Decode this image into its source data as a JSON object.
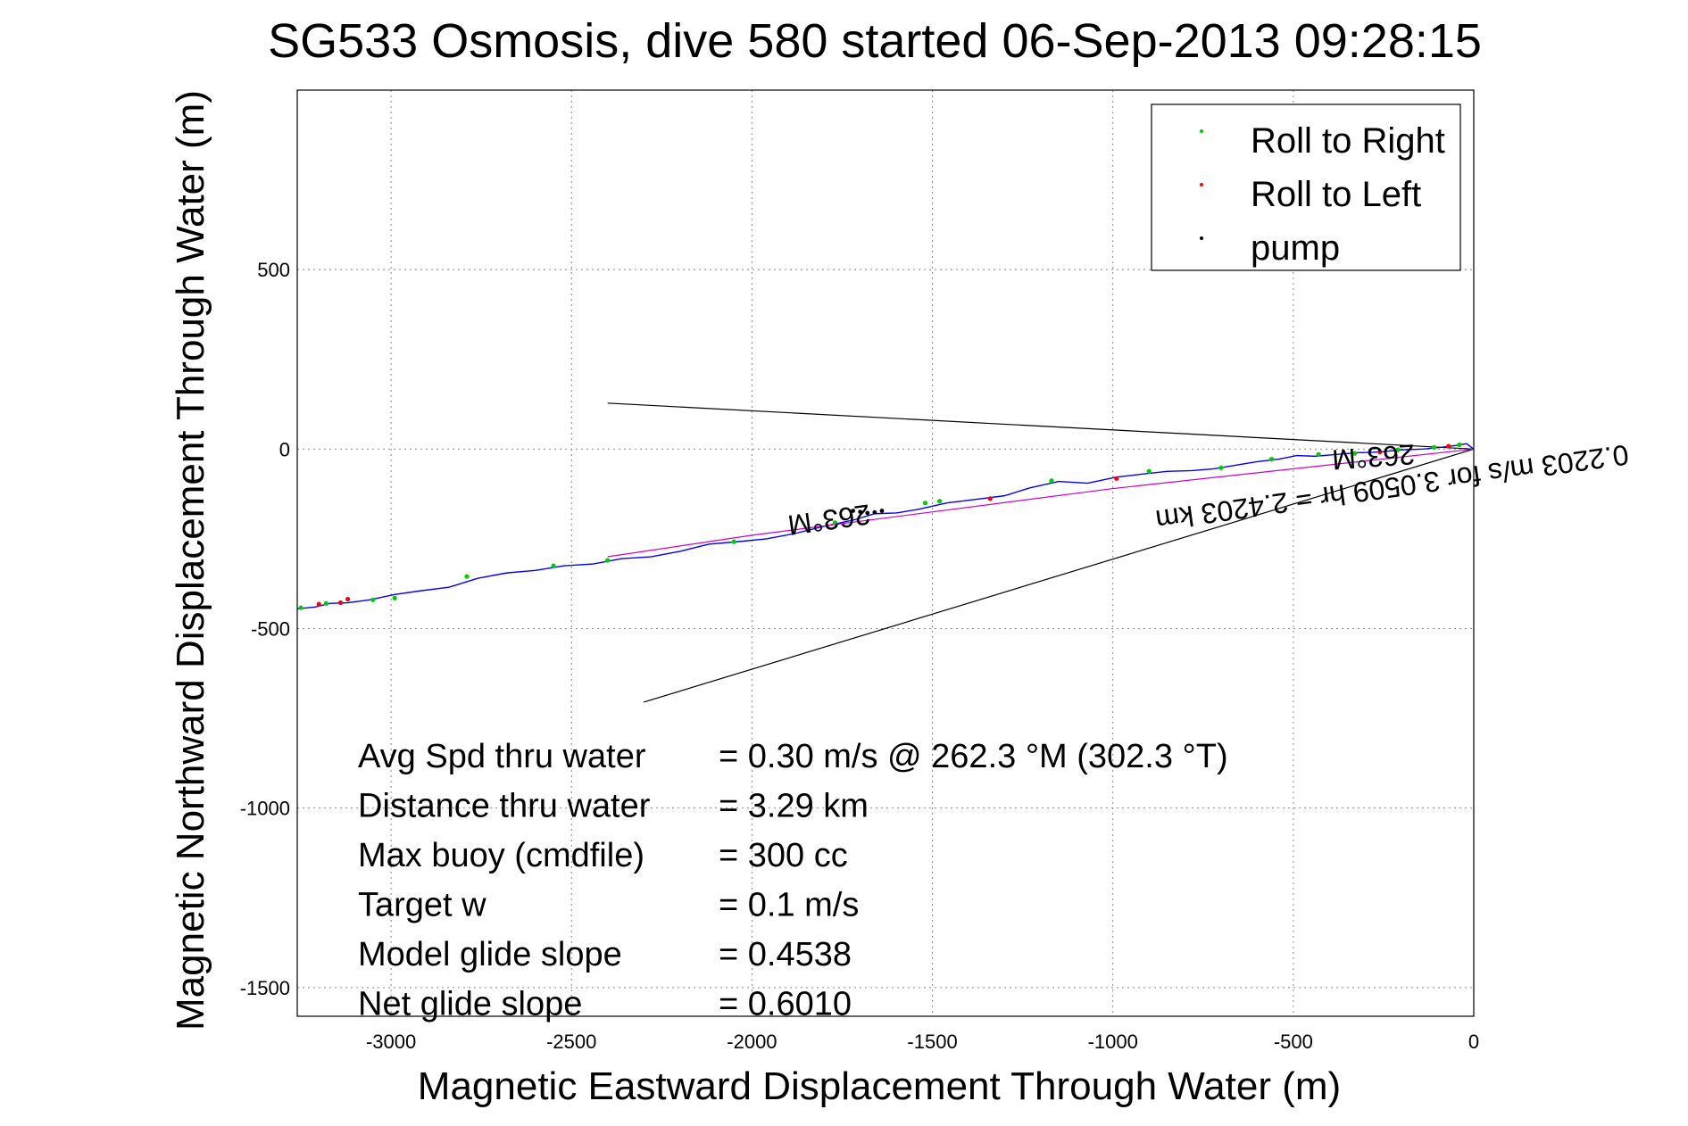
{
  "chart_data": {
    "type": "line",
    "title": "SG533 Osmosis, dive 580 started 06-Sep-2013 09:28:15",
    "xlabel": "Magnetic Eastward Displacement Through Water (m)",
    "ylabel": "Magnetic Northward Displacement Through Water (m)",
    "xlim": [
      -3260,
      0
    ],
    "ylim": [
      -1580,
      1000
    ],
    "xticks": [
      -3000,
      -2500,
      -2000,
      -1500,
      -1000,
      -500,
      0
    ],
    "yticks": [
      500,
      0,
      -500,
      -1000,
      -1500
    ],
    "xtick_labels": [
      "-3000",
      "-2500",
      "-2000",
      "-1500",
      "-1000",
      "-500",
      "0"
    ],
    "ytick_labels": [
      "500",
      "0",
      "-500",
      "-1000",
      "-1500"
    ],
    "grid": true,
    "legend": {
      "placement": "top-right",
      "entries": [
        {
          "label": "Roll to Right",
          "color": "#00cc00"
        },
        {
          "label": "Roll to Left",
          "color": "#ff0000"
        },
        {
          "label": "pump",
          "color": "#000000"
        }
      ]
    },
    "series": [
      {
        "color": "#0000ff",
        "x": [
          0,
          -20,
          -50,
          -90,
          -140,
          -200,
          -260,
          -320,
          -380,
          -440,
          -490,
          -540,
          -600,
          -660,
          -720,
          -780,
          -850,
          -920,
          -990,
          -1070,
          -1150,
          -1230,
          -1300,
          -1380,
          -1460,
          -1540,
          -1600,
          -1660,
          -1720,
          -1800,
          -1880,
          -1960,
          -2040,
          -2120,
          -2200,
          -2280,
          -2360,
          -2440,
          -2520,
          -2600,
          -2680,
          -2760,
          -2840,
          -2920,
          -2990,
          -3060,
          -3120,
          -3170,
          -3210,
          -3260
        ],
        "y": [
          0,
          15,
          10,
          5,
          0,
          -2,
          -8,
          -10,
          -15,
          -20,
          -18,
          -28,
          -35,
          -45,
          -55,
          -60,
          -62,
          -70,
          -78,
          -95,
          -90,
          -108,
          -130,
          -140,
          -150,
          -168,
          -178,
          -180,
          -198,
          -215,
          -235,
          -250,
          -258,
          -265,
          -285,
          -300,
          -305,
          -320,
          -325,
          -338,
          -345,
          -360,
          -385,
          -395,
          -405,
          -420,
          -428,
          -430,
          -440,
          -445
        ]
      },
      {
        "color": "#cc00cc",
        "x": [
          0,
          -1000,
          -2000,
          -2400
        ],
        "y": [
          0,
          -110,
          -240,
          -300
        ]
      }
    ],
    "rolls_right": [
      [
        -40,
        12
      ],
      [
        -110,
        5
      ],
      [
        -210,
        -2
      ],
      [
        -330,
        -12
      ],
      [
        -430,
        -15
      ],
      [
        -560,
        -28
      ],
      [
        -700,
        -52
      ],
      [
        -900,
        -62
      ],
      [
        -1170,
        -88
      ],
      [
        -1480,
        -145
      ],
      [
        -1520,
        -150
      ],
      [
        -1770,
        -205
      ],
      [
        -2050,
        -258
      ],
      [
        -2400,
        -310
      ],
      [
        -2550,
        -325
      ],
      [
        -2790,
        -355
      ],
      [
        -2990,
        -415
      ],
      [
        -3050,
        -420
      ],
      [
        -3180,
        -430
      ],
      [
        -3250,
        -442
      ]
    ],
    "rolls_left": [
      [
        -70,
        8
      ],
      [
        -260,
        -8
      ],
      [
        -990,
        -82
      ],
      [
        -1340,
        -138
      ],
      [
        -3140,
        -428
      ],
      [
        -3200,
        -432
      ],
      [
        -3120,
        -418
      ]
    ],
    "pump": [
      [
        -1640,
        -172
      ],
      [
        -1660,
        -176
      ],
      [
        -1680,
        -178
      ],
      [
        -1700,
        -175
      ],
      [
        -1720,
        -172
      ]
    ],
    "reference_lines": [
      {
        "x": [
          0,
          -2400
        ],
        "y": [
          0,
          128
        ]
      },
      {
        "x": [
          0,
          -2300
        ],
        "y": [
          0,
          -705
        ]
      }
    ],
    "annotations": [
      {
        "text": "263°M",
        "x": -280,
        "y": 5,
        "rotation": 176
      },
      {
        "text": "263°M",
        "x": -1790,
        "y": -170,
        "rotation": 172
      },
      {
        "text": "0.2203 m/s for 3.0509 hr = 2.4203 km",
        "x": -230,
        "y": -80,
        "rotation": 172
      }
    ],
    "stats": [
      {
        "label": "Avg Spd thru water",
        "value": "=  0.30 m/s @ 262.3 °M (302.3 °T)"
      },
      {
        "label": "Distance thru water",
        "value": "=  3.29 km"
      },
      {
        "label": "Max buoy (cmdfile)",
        "value": "= 300 cc"
      },
      {
        "label": "Target w",
        "value": "= 0.1 m/s"
      },
      {
        "label": "Model glide slope",
        "value": "= 0.4538"
      },
      {
        "label": "Net glide slope",
        "value": "= 0.6010"
      }
    ]
  }
}
